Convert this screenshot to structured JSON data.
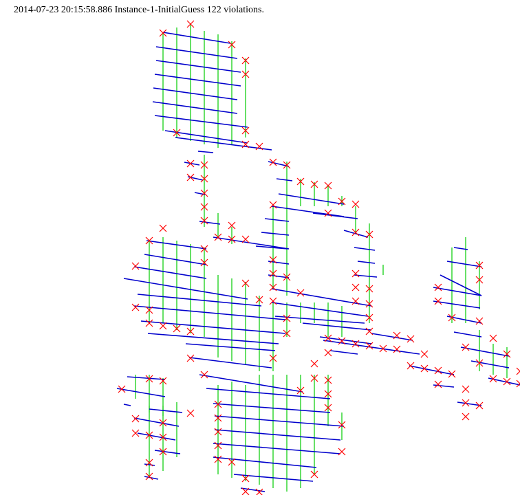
{
  "header": {
    "title": "2014-07-23 20:15:58.886 Instance-1-InitialGuess 122 violations."
  },
  "colors": {
    "background": "#ffffff",
    "horizontal_segment": "#0000cc",
    "vertical_segment": "#00cc00",
    "violation_marker": "#ff0000"
  },
  "legend_items": [
    {
      "name": "horizontal-segment",
      "color": "#0000cc"
    },
    {
      "name": "vertical-segment",
      "color": "#00cc00"
    },
    {
      "name": "violation-marker",
      "color": "#ff0000"
    }
  ]
}
